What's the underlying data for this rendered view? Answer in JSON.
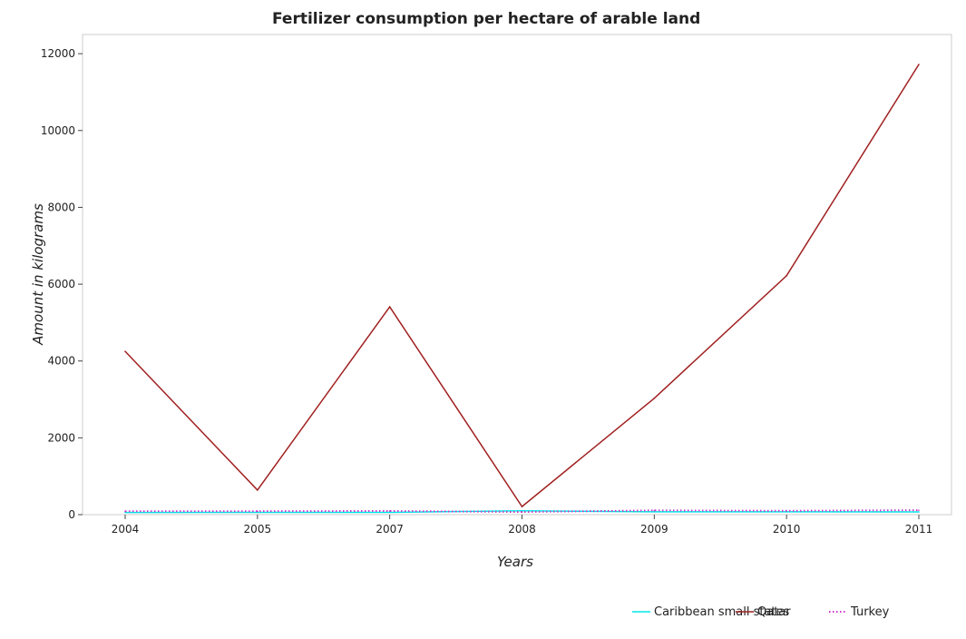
{
  "chart_data": {
    "type": "line",
    "title": "Fertilizer consumption per hectare of arable land",
    "xlabel": "Years",
    "ylabel": "Amount in kilograms",
    "x": [
      "2004",
      "2005",
      "2007",
      "2008",
      "2009",
      "2010",
      "2011"
    ],
    "ylim": [
      0,
      12500
    ],
    "yticks": [
      0,
      2000,
      4000,
      6000,
      8000,
      10000,
      12000
    ],
    "grid": false,
    "legend_position": "bottom-right",
    "series": [
      {
        "name": "Caribbean small states",
        "color": "#00e5e5",
        "dash": "solid",
        "values": [
          55,
          60,
          60,
          100,
          75,
          75,
          70
        ]
      },
      {
        "name": "Qatar",
        "color": "#a02020",
        "dash": "solid",
        "values": [
          4250,
          640,
          5410,
          210,
          3030,
          6220,
          11720
        ]
      },
      {
        "name": "Turkey",
        "color": "#cc33cc",
        "dash": "dotted",
        "values": [
          90,
          90,
          95,
          70,
          110,
          100,
          115
        ]
      }
    ]
  }
}
